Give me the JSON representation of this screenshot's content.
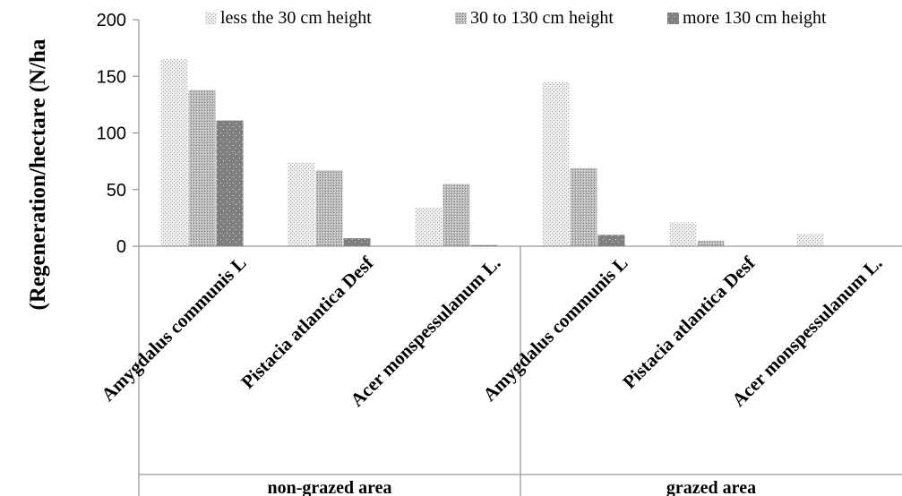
{
  "chart_data": {
    "type": "bar",
    "ylabel": "(Regeneration/hectare (N/ha",
    "ylim": [
      0,
      200
    ],
    "yticks": [
      0,
      50,
      100,
      150,
      200
    ],
    "grid": false,
    "legend_position": "top",
    "groups": [
      {
        "label": "non-grazed area",
        "categories": [
          "Amygdalus communis L",
          "Pistacia atlantica Desf",
          "Acer monspessulanum L."
        ]
      },
      {
        "label": "grazed area",
        "categories": [
          "Amygdalus communis L",
          "Pistacia atlantica Desf",
          "Acer monspessulanum L."
        ]
      }
    ],
    "series": [
      {
        "name": "less the 30 cm height",
        "values": [
          165,
          74,
          34,
          145,
          21,
          11
        ]
      },
      {
        "name": "30 to 130 cm height",
        "values": [
          138,
          67,
          55,
          69,
          5,
          0
        ]
      },
      {
        "name": "more 130 cm height",
        "values": [
          111,
          7,
          1,
          10,
          0,
          0
        ]
      }
    ]
  }
}
